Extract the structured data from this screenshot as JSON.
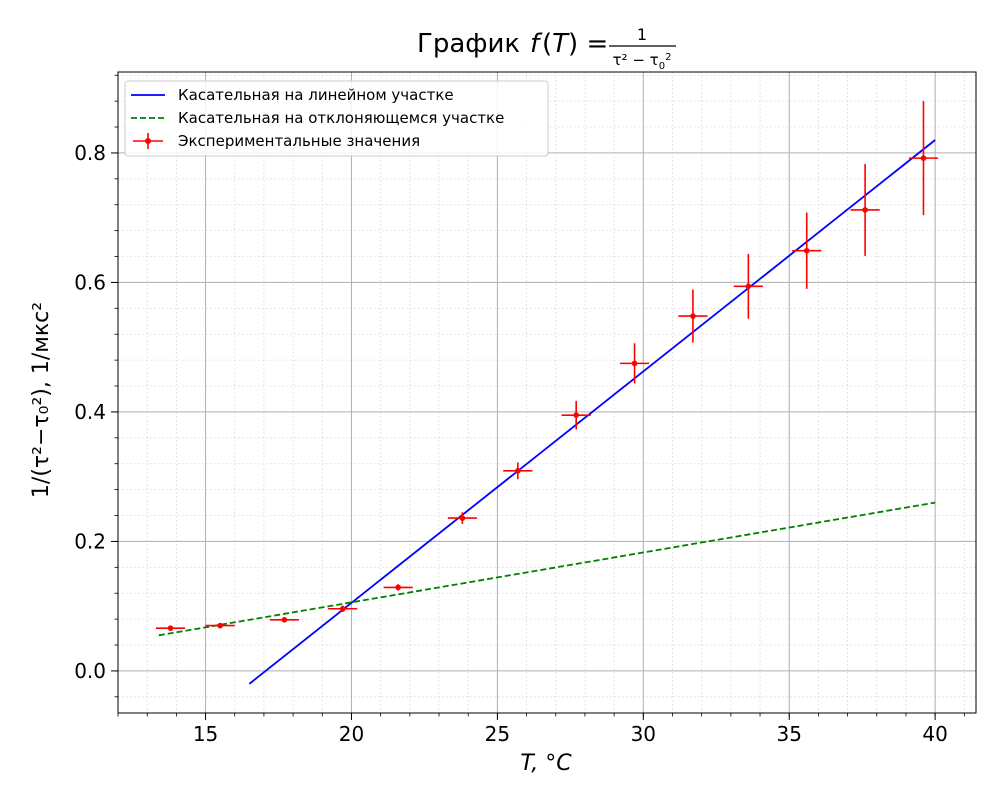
{
  "chart_data": {
    "type": "scatter",
    "title_prefix": "График ",
    "xlabel": "T, °C",
    "ylabel": "1/(τ²−τ₀²), 1/мкс²",
    "xlim": [
      12,
      41.4
    ],
    "ylim": [
      -0.065,
      0.925
    ],
    "x_ticks": [
      15,
      20,
      25,
      30,
      35,
      40
    ],
    "y_ticks": [
      0.0,
      0.2,
      0.4,
      0.6,
      0.8
    ],
    "x_tick_labels": [
      "15",
      "20",
      "25",
      "30",
      "35",
      "40"
    ],
    "y_tick_labels": [
      "0.0",
      "0.2",
      "0.4",
      "0.6",
      "0.8"
    ],
    "x_minor_step": 1,
    "y_minor_step": 0.04,
    "grid": true,
    "legend_position": "top-left",
    "series": [
      {
        "name": "Касательная на линейном участке",
        "kind": "line",
        "color": "#0000ff",
        "dash": "solid",
        "x": [
          16.5,
          40.0
        ],
        "y": [
          -0.02,
          0.82
        ]
      },
      {
        "name": "Касательная на отклоняющемся участке",
        "kind": "line",
        "color": "#008000",
        "dash": "dashed",
        "x": [
          13.4,
          40.0
        ],
        "y": [
          0.055,
          0.26
        ]
      },
      {
        "name": "Экспериментальные значения",
        "kind": "errorbar",
        "color": "#ff0000",
        "x": [
          13.8,
          15.5,
          17.7,
          19.7,
          21.6,
          23.8,
          25.7,
          27.7,
          29.7,
          31.7,
          33.6,
          35.6,
          37.6,
          39.6
        ],
        "y": [
          0.066,
          0.07,
          0.079,
          0.096,
          0.129,
          0.236,
          0.309,
          0.395,
          0.475,
          0.548,
          0.594,
          0.649,
          0.712,
          0.792
        ],
        "xerr": [
          0.5,
          0.5,
          0.5,
          0.5,
          0.5,
          0.5,
          0.5,
          0.5,
          0.5,
          0.5,
          0.5,
          0.5,
          0.5,
          0.5
        ],
        "yerr": [
          0.003,
          0.003,
          0.003,
          0.005,
          0.005,
          0.009,
          0.013,
          0.022,
          0.031,
          0.041,
          0.05,
          0.059,
          0.071,
          0.088
        ]
      }
    ]
  }
}
